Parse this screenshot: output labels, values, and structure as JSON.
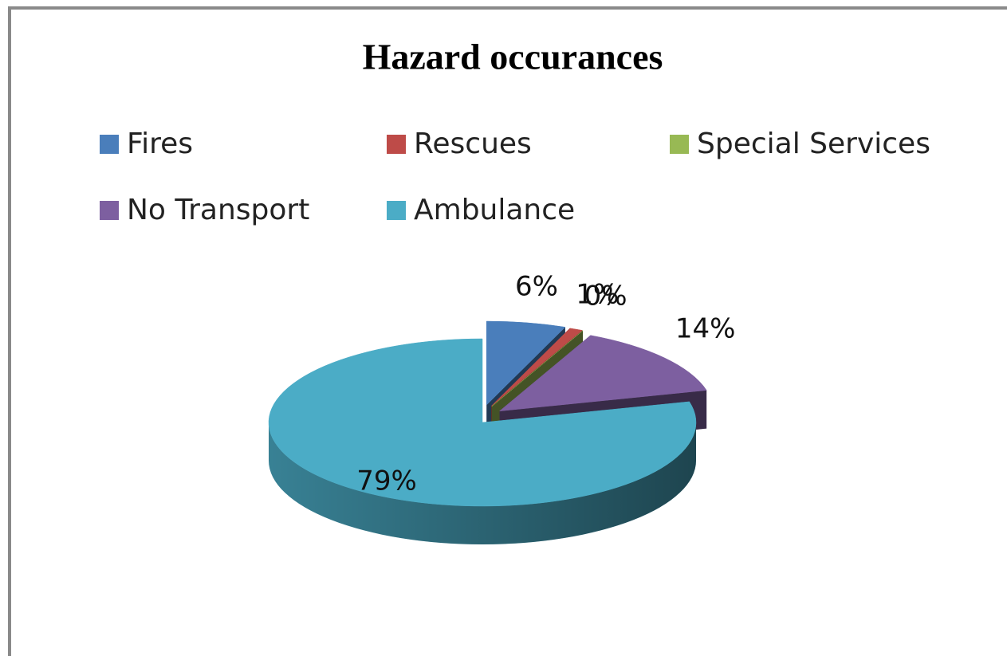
{
  "chart_data": {
    "type": "pie",
    "title": "Hazard occurances",
    "categories": [
      "Fires",
      "Rescues",
      "Special Services",
      "No Transport",
      "Ambulance"
    ],
    "values": [
      6,
      1,
      0,
      14,
      79
    ],
    "value_labels": [
      "6%",
      "1%",
      "0%",
      "14%",
      "79%"
    ],
    "colors": [
      "#4a7ebb",
      "#be4b48",
      "#98b954",
      "#7d5fa0",
      "#4bacc6"
    ],
    "legend": "top"
  }
}
